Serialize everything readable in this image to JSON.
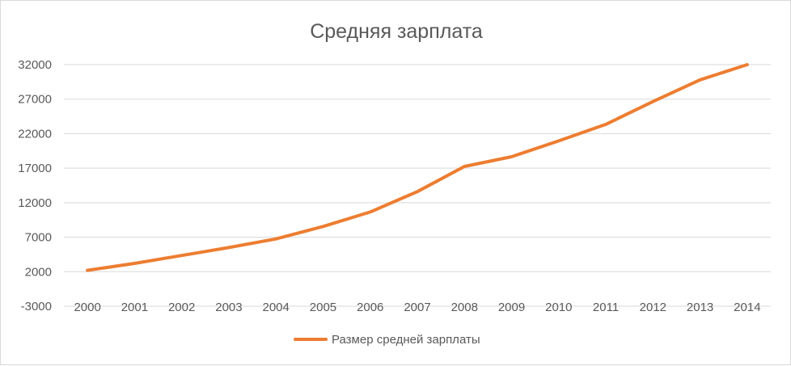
{
  "chart_data": {
    "type": "line",
    "title": "Средняя зарплата",
    "xlabel": "",
    "ylabel": "",
    "ylim": [
      -3000,
      32000
    ],
    "yticks": [
      -3000,
      2000,
      7000,
      12000,
      17000,
      22000,
      27000,
      32000
    ],
    "categories": [
      "2000",
      "2001",
      "2002",
      "2003",
      "2004",
      "2005",
      "2006",
      "2007",
      "2008",
      "2009",
      "2010",
      "2011",
      "2012",
      "2013",
      "2014"
    ],
    "series": [
      {
        "name": "Размер средней зарплаты",
        "color": "#ed7d31",
        "values": [
          2200,
          3200,
          4350,
          5500,
          6750,
          8550,
          10650,
          13600,
          17250,
          18650,
          20950,
          23350,
          26650,
          29800,
          32000
        ]
      }
    ],
    "grid": true,
    "legend_position": "bottom"
  }
}
